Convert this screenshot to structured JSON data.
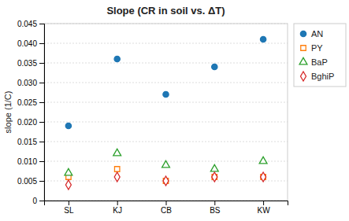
{
  "chart_data": {
    "type": "scatter",
    "title": "Slope (CR in soil vs. ΔT)",
    "ylabel": "slope (1/C)",
    "categories": [
      "SL",
      "KJ",
      "CB",
      "BS",
      "KW"
    ],
    "series": [
      {
        "name": "AN",
        "marker": "circle",
        "values": [
          0.019,
          0.036,
          0.027,
          0.034,
          0.041
        ]
      },
      {
        "name": "PY",
        "marker": "open-square",
        "values": [
          0.006,
          0.008,
          0.005,
          0.006,
          0.006
        ]
      },
      {
        "name": "BaP",
        "marker": "open-triangle",
        "values": [
          0.007,
          0.012,
          0.009,
          0.008,
          0.01
        ]
      },
      {
        "name": "BghiP",
        "marker": "open-diamond",
        "values": [
          0.004,
          0.006,
          0.005,
          0.006,
          0.006
        ]
      }
    ],
    "ylim": [
      0,
      0.045
    ],
    "yticks": [
      0,
      0.005,
      {
        "value": 0.01,
        "label": "0.010"
      },
      0.015,
      {
        "value": 0.02,
        "label": "0.020"
      },
      0.025,
      {
        "value": 0.03,
        "label": "0.030"
      },
      0.035,
      {
        "value": 0.04,
        "label": "0.040"
      },
      0.045
    ],
    "grid": true,
    "legend": "right"
  }
}
